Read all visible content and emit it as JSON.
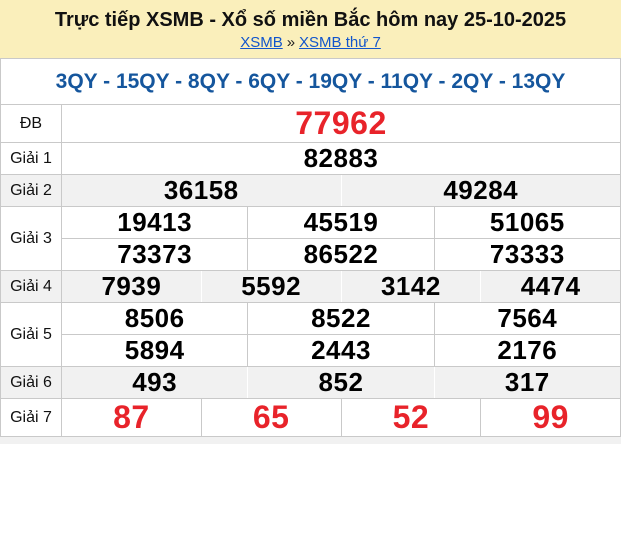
{
  "header": {
    "title": "Trực tiếp XSMB - Xổ số miền Bắc hôm nay 25-10-2025",
    "breadcrumb": {
      "link1": "XSMB",
      "separator": "»",
      "link2": "XSMB thứ 7"
    }
  },
  "summary": {
    "text": "3QY - 15QY - 8QY - 6QY - 19QY - 11QY - 2QY - 13QY"
  },
  "colors": {
    "header_bg": "#FAEFBB",
    "link_blue": "#1155CC",
    "summary_blue": "#15569D",
    "accent_red": "#E8232A",
    "row_alt_bg": "#F1F1F1",
    "border_gray": "#C9C9C9"
  },
  "results": {
    "rows": [
      {
        "key": "db",
        "label": "ĐB",
        "alt": false,
        "groups": [
          [
            "77962"
          ]
        ]
      },
      {
        "key": "g1",
        "label": "Giải 1",
        "alt": false,
        "groups": [
          [
            "82883"
          ]
        ]
      },
      {
        "key": "g2",
        "label": "Giải 2",
        "alt": true,
        "groups": [
          [
            "36158",
            "49284"
          ]
        ]
      },
      {
        "key": "g3",
        "label": "Giải 3",
        "alt": false,
        "groups": [
          [
            "19413",
            "45519",
            "51065"
          ],
          [
            "73373",
            "86522",
            "73333"
          ]
        ]
      },
      {
        "key": "g4",
        "label": "Giải 4",
        "alt": true,
        "groups": [
          [
            "7939",
            "5592",
            "3142",
            "4474"
          ]
        ]
      },
      {
        "key": "g5",
        "label": "Giải 5",
        "alt": false,
        "groups": [
          [
            "8506",
            "8522",
            "7564"
          ],
          [
            "5894",
            "2443",
            "2176"
          ]
        ]
      },
      {
        "key": "g6",
        "label": "Giải 6",
        "alt": true,
        "groups": [
          [
            "493",
            "852",
            "317"
          ]
        ]
      },
      {
        "key": "g7",
        "label": "Giải 7",
        "alt": false,
        "groups": [
          [
            "87",
            "65",
            "52",
            "99"
          ]
        ]
      }
    ]
  }
}
